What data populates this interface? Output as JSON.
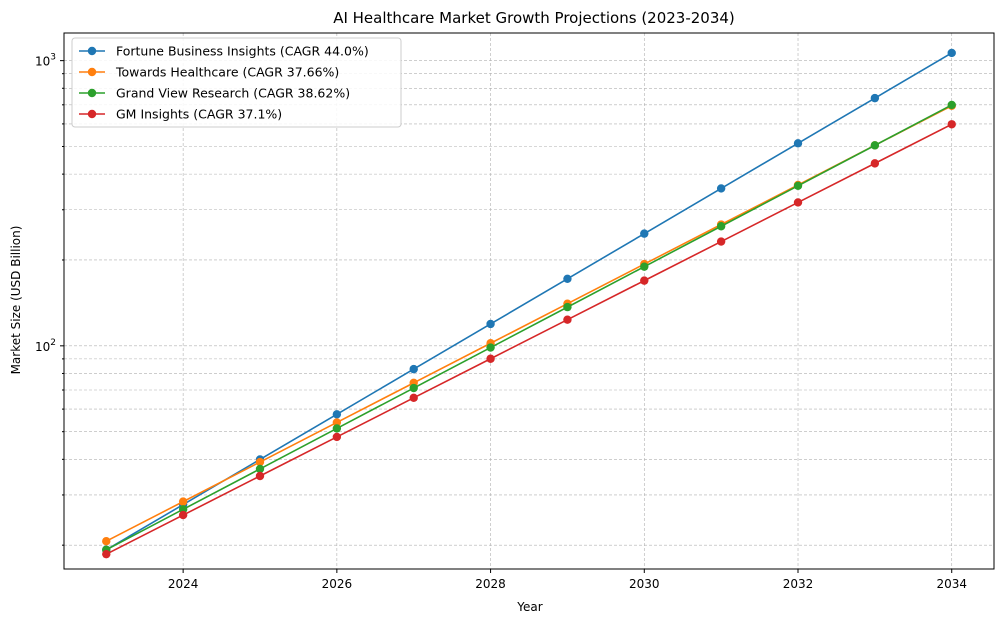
{
  "chart_data": {
    "type": "line",
    "title": "AI Healthcare Market Growth Projections (2023-2034)",
    "xlabel": "Year",
    "ylabel": "Market Size (USD Billion)",
    "yscale": "log",
    "xlim": [
      2022.45,
      2034.55
    ],
    "ylim": [
      16.5,
      1250
    ],
    "grid": true,
    "legend_position": "top-left",
    "x": [
      2023,
      2024,
      2025,
      2026,
      2027,
      2028,
      2029,
      2030,
      2031,
      2032,
      2033,
      2034
    ],
    "x_ticks": [
      {
        "value": 2024,
        "label": "2024"
      },
      {
        "value": 2026,
        "label": "2026"
      },
      {
        "value": 2028,
        "label": "2028"
      },
      {
        "value": 2030,
        "label": "2030"
      },
      {
        "value": 2032,
        "label": "2032"
      },
      {
        "value": 2034,
        "label": "2034"
      }
    ],
    "y_major_ticks": [
      {
        "value": 100,
        "base": "10",
        "exp": "2"
      },
      {
        "value": 1000,
        "base": "10",
        "exp": "3"
      }
    ],
    "series": [
      {
        "name": "Fortune Business Insights (CAGR 44.0%)",
        "color": "#1f77b4",
        "values": [
          19.27,
          27.75,
          39.96,
          57.54,
          82.86,
          119.3,
          171.8,
          247.4,
          356.3,
          513.1,
          738.8,
          1063.9
        ]
      },
      {
        "name": "Towards Healthcare (CAGR 37.66%)",
        "color": "#ff7f0e",
        "values": [
          20.65,
          28.43,
          39.13,
          53.87,
          74.16,
          102.1,
          140.5,
          193.5,
          266.3,
          366.6,
          504.7,
          694.8
        ]
      },
      {
        "name": "Grand View Research (CAGR 38.62%)",
        "color": "#2ca02c",
        "values": [
          19.27,
          26.71,
          37.02,
          51.32,
          71.13,
          98.6,
          136.7,
          189.5,
          262.6,
          364.0,
          504.6,
          699.4
        ]
      },
      {
        "name": "GM Insights (CAGR 37.1%)",
        "color": "#d62728",
        "values": [
          18.6,
          25.5,
          34.96,
          47.93,
          65.71,
          90.09,
          123.5,
          169.3,
          232.1,
          318.2,
          436.3,
          598.2
        ]
      }
    ]
  }
}
